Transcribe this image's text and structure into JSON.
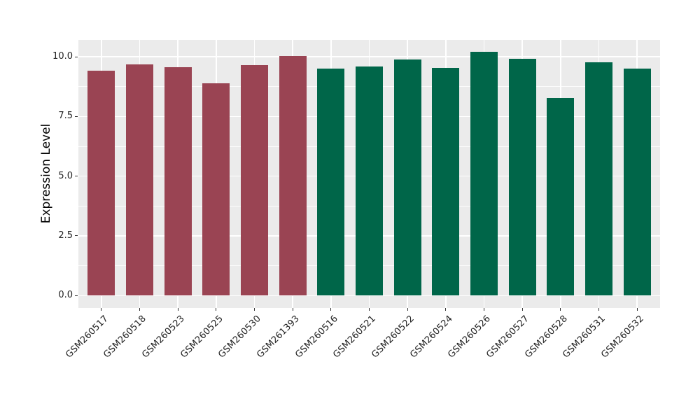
{
  "figure": {
    "background": "#FFFFFF"
  },
  "chart_data": {
    "type": "bar",
    "title": "",
    "xlabel": "",
    "ylabel": "Expression Level",
    "categories": [
      "GSM260517",
      "GSM260518",
      "GSM260523",
      "GSM260525",
      "GSM260530",
      "GSM261393",
      "GSM260516",
      "GSM260521",
      "GSM260522",
      "GSM260524",
      "GSM260526",
      "GSM260527",
      "GSM260528",
      "GSM260531",
      "GSM260532"
    ],
    "values": [
      9.42,
      9.69,
      9.56,
      8.89,
      9.65,
      10.03,
      9.49,
      9.6,
      9.88,
      9.52,
      10.21,
      9.9,
      8.26,
      9.77,
      9.49
    ],
    "bar_colors": [
      "#9A4453",
      "#9A4453",
      "#9A4453",
      "#9A4453",
      "#9A4453",
      "#9A4453",
      "#006649",
      "#006649",
      "#006649",
      "#006649",
      "#006649",
      "#006649",
      "#006649",
      "#006649",
      "#006649"
    ],
    "group_colors": {
      "group1": "#9A4453",
      "group2": "#006649"
    },
    "group_sizes": {
      "group1": 6,
      "group2": 9
    },
    "yticks": [
      0.0,
      2.5,
      5.0,
      7.5,
      10.0
    ],
    "ytick_labels": [
      "0.0",
      "2.5",
      "5.0",
      "7.5",
      "10.0"
    ],
    "y_minor_gridlines": [
      1.25,
      3.75,
      6.25,
      8.75
    ],
    "ylim": [
      0,
      10.7
    ],
    "xtick_label_rotation_deg": 45,
    "grid": "on",
    "legend": "none",
    "panel_background": "#EBEBEB",
    "grid_color": "#FFFFFF",
    "tick_color": "#333333",
    "tick_label_color": "#222222"
  }
}
